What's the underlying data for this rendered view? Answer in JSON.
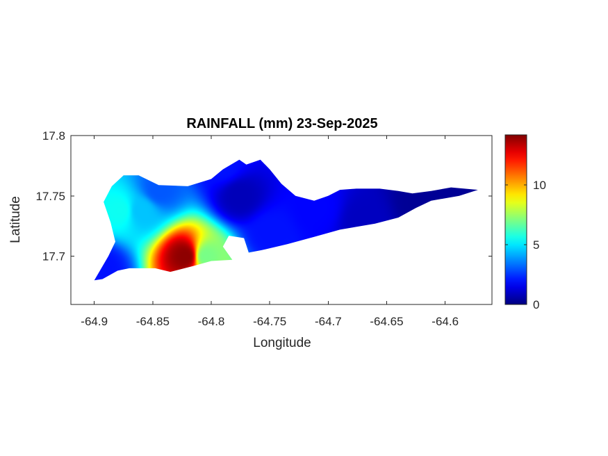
{
  "chart_data": {
    "type": "heatmap",
    "title": "RAINFALL (mm) 23-Sep-2025",
    "xlabel": "Longitude",
    "ylabel": "Latitude",
    "xlim": [
      -64.92,
      -64.56
    ],
    "ylim": [
      17.66,
      17.8
    ],
    "xticks": [
      -64.9,
      -64.85,
      -64.8,
      -64.75,
      -64.7,
      -64.65,
      -64.6
    ],
    "xtick_labels": [
      "-64.9",
      "-64.85",
      "-64.8",
      "-64.75",
      "-64.7",
      "-64.65",
      "-64.6"
    ],
    "yticks": [
      17.7,
      17.75,
      17.8
    ],
    "ytick_labels": [
      "17.7",
      "17.75",
      "17.8"
    ],
    "colorbar": {
      "colormap": "jet",
      "limits": [
        0,
        14.2
      ],
      "ticks": [
        0,
        5,
        10
      ],
      "tick_labels": [
        "0",
        "5",
        "10"
      ],
      "location": "right"
    },
    "grid": false,
    "rainfall_points": [
      {
        "lon": -64.822,
        "lat": 17.7,
        "value": 14.0
      },
      {
        "lon": -64.878,
        "lat": 17.738,
        "value": 5.5
      },
      {
        "lon": -64.86,
        "lat": 17.738,
        "value": 4.5
      },
      {
        "lon": -64.845,
        "lat": 17.755,
        "value": 3.0
      },
      {
        "lon": -64.893,
        "lat": 17.69,
        "value": 2.0
      },
      {
        "lon": -64.805,
        "lat": 17.7,
        "value": 7.0
      },
      {
        "lon": -64.776,
        "lat": 17.75,
        "value": 0.8
      },
      {
        "lon": -64.79,
        "lat": 17.775,
        "value": 2.0
      },
      {
        "lon": -64.75,
        "lat": 17.72,
        "value": 2.0
      },
      {
        "lon": -64.71,
        "lat": 17.74,
        "value": 1.8
      },
      {
        "lon": -64.67,
        "lat": 17.73,
        "value": 0.9
      },
      {
        "lon": -64.62,
        "lat": 17.745,
        "value": 0.3
      },
      {
        "lon": -64.585,
        "lat": 17.755,
        "value": 0.3
      }
    ],
    "island_outline": [
      [
        -64.9,
        17.68
      ],
      [
        -64.888,
        17.7
      ],
      [
        -64.882,
        17.712
      ],
      [
        -64.886,
        17.728
      ],
      [
        -64.892,
        17.745
      ],
      [
        -64.885,
        17.758
      ],
      [
        -64.875,
        17.767
      ],
      [
        -64.862,
        17.767
      ],
      [
        -64.845,
        17.759
      ],
      [
        -64.82,
        17.758
      ],
      [
        -64.8,
        17.764
      ],
      [
        -64.79,
        17.772
      ],
      [
        -64.776,
        17.78
      ],
      [
        -64.77,
        17.776
      ],
      [
        -64.758,
        17.78
      ],
      [
        -64.75,
        17.772
      ],
      [
        -64.74,
        17.76
      ],
      [
        -64.728,
        17.75
      ],
      [
        -64.712,
        17.746
      ],
      [
        -64.7,
        17.75
      ],
      [
        -64.69,
        17.755
      ],
      [
        -64.676,
        17.756
      ],
      [
        -64.656,
        17.756
      ],
      [
        -64.64,
        17.754
      ],
      [
        -64.628,
        17.752
      ],
      [
        -64.612,
        17.754
      ],
      [
        -64.595,
        17.757
      ],
      [
        -64.572,
        17.755
      ],
      [
        -64.588,
        17.75
      ],
      [
        -64.612,
        17.746
      ],
      [
        -64.625,
        17.74
      ],
      [
        -64.64,
        17.732
      ],
      [
        -64.66,
        17.727
      ],
      [
        -64.69,
        17.722
      ],
      [
        -64.712,
        17.716
      ],
      [
        -64.735,
        17.71
      ],
      [
        -64.757,
        17.705
      ],
      [
        -64.768,
        17.703
      ],
      [
        -64.772,
        17.715
      ],
      [
        -64.785,
        17.717
      ],
      [
        -64.79,
        17.708
      ],
      [
        -64.782,
        17.697
      ],
      [
        -64.8,
        17.696
      ],
      [
        -64.815,
        17.692
      ],
      [
        -64.835,
        17.687
      ],
      [
        -64.848,
        17.69
      ],
      [
        -64.87,
        17.69
      ],
      [
        -64.88,
        17.688
      ],
      [
        -64.893,
        17.681
      ]
    ]
  }
}
